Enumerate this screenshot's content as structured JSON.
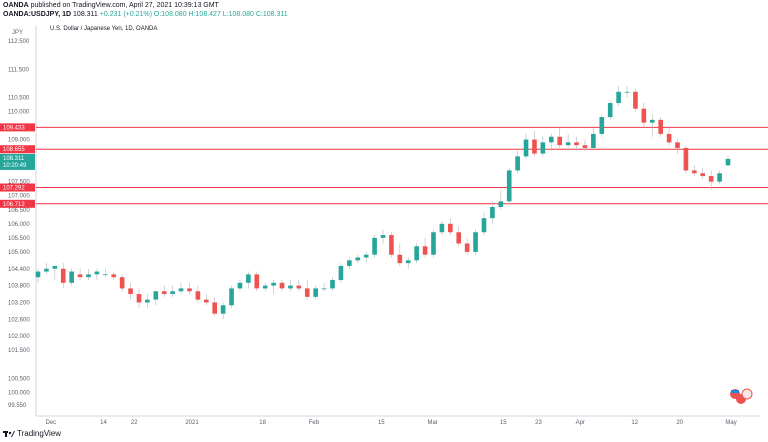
{
  "header": {
    "publisher_line": "OANDA published on TradingView.com, April 27, 2021 10:39:13 GMT",
    "publisher_name": "OANDA",
    "publisher_rest": " published on TradingView.com, April 27, 2021 10:39:13 GMT",
    "symbol": "OANDA:USDJPY, 1D",
    "last": "108.311",
    "change": "+0.231 (+0.21%)",
    "ohlc": "O:108.080 H:108.427 L:108.080 C:108.311"
  },
  "legend_title": "U.S. Dollar / Japanese Yen, 1D, OANDA",
  "price_axis": {
    "currency": "JPY",
    "ticks": [
      "112.500",
      "111.500",
      "110.500",
      "110.000",
      "109.000",
      "108.300",
      "107.500",
      "107.000",
      "106.500",
      "106.000",
      "105.500",
      "105.000",
      "104.400",
      "103.800",
      "103.200",
      "102.600",
      "102.000",
      "101.500",
      "100.500",
      "100.000",
      "99.550"
    ]
  },
  "time_axis": {
    "ticks": [
      "Dec",
      "14",
      "22",
      "2021",
      "18",
      "Feb",
      "15",
      "Mar",
      "15",
      "23",
      "Apr",
      "12",
      "20",
      "May"
    ]
  },
  "current_price_label": "108.311",
  "current_price_time": "10:20:49",
  "colors": {
    "up": "#26a69a",
    "down": "#ef5350",
    "hline": "#f23645",
    "label_bg": "#f23645"
  },
  "chart_data": {
    "type": "candlestick",
    "title": "U.S. Dollar / Japanese Yen, 1D, OANDA",
    "symbol": "USDJPY",
    "ylim": [
      99.3,
      112.9
    ],
    "horizontal_lines": [
      109.433,
      108.655,
      107.292,
      106.712
    ],
    "horizontal_line_labels": [
      "109.433",
      "108.655",
      "107.292",
      "106.712"
    ],
    "candles": [
      {
        "o": 104.1,
        "h": 104.4,
        "l": 103.9,
        "c": 104.3
      },
      {
        "o": 104.3,
        "h": 104.6,
        "l": 104.2,
        "c": 104.4
      },
      {
        "o": 104.4,
        "h": 104.5,
        "l": 104.0,
        "c": 104.5
      },
      {
        "o": 104.4,
        "h": 104.6,
        "l": 103.7,
        "c": 103.9
      },
      {
        "o": 103.9,
        "h": 104.4,
        "l": 103.8,
        "c": 104.3
      },
      {
        "o": 104.2,
        "h": 104.4,
        "l": 104.0,
        "c": 104.1
      },
      {
        "o": 104.1,
        "h": 104.4,
        "l": 104.0,
        "c": 104.2
      },
      {
        "o": 104.2,
        "h": 104.4,
        "l": 104.0,
        "c": 104.3
      },
      {
        "o": 104.2,
        "h": 104.4,
        "l": 104.1,
        "c": 104.2
      },
      {
        "o": 104.2,
        "h": 104.3,
        "l": 104.0,
        "c": 104.1
      },
      {
        "o": 104.1,
        "h": 104.2,
        "l": 103.6,
        "c": 103.7
      },
      {
        "o": 103.7,
        "h": 103.9,
        "l": 103.3,
        "c": 103.5
      },
      {
        "o": 103.5,
        "h": 103.7,
        "l": 103.0,
        "c": 103.2
      },
      {
        "o": 103.2,
        "h": 103.5,
        "l": 103.0,
        "c": 103.3
      },
      {
        "o": 103.3,
        "h": 103.6,
        "l": 103.1,
        "c": 103.6
      },
      {
        "o": 103.6,
        "h": 103.8,
        "l": 103.4,
        "c": 103.5
      },
      {
        "o": 103.5,
        "h": 103.8,
        "l": 103.4,
        "c": 103.6
      },
      {
        "o": 103.6,
        "h": 103.9,
        "l": 103.5,
        "c": 103.7
      },
      {
        "o": 103.7,
        "h": 103.9,
        "l": 103.5,
        "c": 103.6
      },
      {
        "o": 103.6,
        "h": 103.8,
        "l": 103.2,
        "c": 103.3
      },
      {
        "o": 103.3,
        "h": 103.5,
        "l": 103.1,
        "c": 103.2
      },
      {
        "o": 103.2,
        "h": 103.4,
        "l": 102.7,
        "c": 102.8
      },
      {
        "o": 102.8,
        "h": 103.2,
        "l": 102.6,
        "c": 103.1
      },
      {
        "o": 103.1,
        "h": 103.8,
        "l": 103.0,
        "c": 103.7
      },
      {
        "o": 103.7,
        "h": 104.0,
        "l": 103.6,
        "c": 103.9
      },
      {
        "o": 103.9,
        "h": 104.3,
        "l": 103.7,
        "c": 104.2
      },
      {
        "o": 104.2,
        "h": 104.3,
        "l": 103.6,
        "c": 103.7
      },
      {
        "o": 103.7,
        "h": 103.9,
        "l": 103.6,
        "c": 103.8
      },
      {
        "o": 103.8,
        "h": 104.0,
        "l": 103.5,
        "c": 103.9
      },
      {
        "o": 103.9,
        "h": 104.0,
        "l": 103.6,
        "c": 103.7
      },
      {
        "o": 103.7,
        "h": 104.0,
        "l": 103.6,
        "c": 103.8
      },
      {
        "o": 103.8,
        "h": 104.0,
        "l": 103.6,
        "c": 103.7
      },
      {
        "o": 103.7,
        "h": 104.0,
        "l": 103.3,
        "c": 103.4
      },
      {
        "o": 103.4,
        "h": 103.8,
        "l": 103.3,
        "c": 103.7
      },
      {
        "o": 103.7,
        "h": 103.9,
        "l": 103.6,
        "c": 103.7
      },
      {
        "o": 103.7,
        "h": 104.1,
        "l": 103.6,
        "c": 104.0
      },
      {
        "o": 104.0,
        "h": 104.6,
        "l": 103.9,
        "c": 104.5
      },
      {
        "o": 104.5,
        "h": 104.8,
        "l": 104.4,
        "c": 104.7
      },
      {
        "o": 104.7,
        "h": 104.9,
        "l": 104.6,
        "c": 104.8
      },
      {
        "o": 104.8,
        "h": 105.0,
        "l": 104.6,
        "c": 104.9
      },
      {
        "o": 104.9,
        "h": 105.6,
        "l": 104.8,
        "c": 105.5
      },
      {
        "o": 105.5,
        "h": 105.8,
        "l": 105.3,
        "c": 105.6
      },
      {
        "o": 105.6,
        "h": 105.7,
        "l": 104.8,
        "c": 104.9
      },
      {
        "o": 104.9,
        "h": 105.3,
        "l": 104.5,
        "c": 104.6
      },
      {
        "o": 104.6,
        "h": 104.8,
        "l": 104.4,
        "c": 104.7
      },
      {
        "o": 104.7,
        "h": 105.3,
        "l": 104.6,
        "c": 105.2
      },
      {
        "o": 105.2,
        "h": 105.5,
        "l": 104.8,
        "c": 104.9
      },
      {
        "o": 104.9,
        "h": 105.8,
        "l": 104.8,
        "c": 105.7
      },
      {
        "o": 105.7,
        "h": 106.1,
        "l": 105.6,
        "c": 106.0
      },
      {
        "o": 106.0,
        "h": 106.2,
        "l": 105.6,
        "c": 105.7
      },
      {
        "o": 105.7,
        "h": 105.9,
        "l": 105.2,
        "c": 105.3
      },
      {
        "o": 105.3,
        "h": 105.5,
        "l": 104.9,
        "c": 105.0
      },
      {
        "o": 105.0,
        "h": 105.8,
        "l": 104.9,
        "c": 105.7
      },
      {
        "o": 105.7,
        "h": 106.4,
        "l": 105.6,
        "c": 106.2
      },
      {
        "o": 106.2,
        "h": 106.8,
        "l": 106.0,
        "c": 106.6
      },
      {
        "o": 106.6,
        "h": 107.2,
        "l": 106.5,
        "c": 106.8
      },
      {
        "o": 106.8,
        "h": 108.0,
        "l": 106.7,
        "c": 107.9
      },
      {
        "o": 107.9,
        "h": 108.6,
        "l": 107.8,
        "c": 108.4
      },
      {
        "o": 108.4,
        "h": 109.2,
        "l": 108.3,
        "c": 109.0
      },
      {
        "o": 109.0,
        "h": 109.3,
        "l": 108.4,
        "c": 108.5
      },
      {
        "o": 108.5,
        "h": 109.1,
        "l": 108.4,
        "c": 108.9
      },
      {
        "o": 108.9,
        "h": 109.2,
        "l": 108.6,
        "c": 109.1
      },
      {
        "o": 109.1,
        "h": 109.4,
        "l": 108.7,
        "c": 108.8
      },
      {
        "o": 108.8,
        "h": 109.2,
        "l": 108.6,
        "c": 108.9
      },
      {
        "o": 108.9,
        "h": 109.1,
        "l": 108.6,
        "c": 108.8
      },
      {
        "o": 108.8,
        "h": 109.0,
        "l": 108.6,
        "c": 108.7
      },
      {
        "o": 108.7,
        "h": 109.4,
        "l": 108.6,
        "c": 109.2
      },
      {
        "o": 109.2,
        "h": 109.9,
        "l": 109.1,
        "c": 109.8
      },
      {
        "o": 109.8,
        "h": 110.4,
        "l": 109.7,
        "c": 110.3
      },
      {
        "o": 110.3,
        "h": 110.9,
        "l": 110.2,
        "c": 110.7
      },
      {
        "o": 110.7,
        "h": 110.9,
        "l": 110.5,
        "c": 110.7
      },
      {
        "o": 110.7,
        "h": 110.8,
        "l": 110.0,
        "c": 110.1
      },
      {
        "o": 110.1,
        "h": 110.3,
        "l": 109.4,
        "c": 109.6
      },
      {
        "o": 109.6,
        "h": 109.9,
        "l": 109.1,
        "c": 109.7
      },
      {
        "o": 109.7,
        "h": 109.8,
        "l": 109.1,
        "c": 109.2
      },
      {
        "o": 109.2,
        "h": 109.4,
        "l": 108.8,
        "c": 108.9
      },
      {
        "o": 108.9,
        "h": 109.0,
        "l": 108.5,
        "c": 108.7
      },
      {
        "o": 108.7,
        "h": 108.8,
        "l": 107.8,
        "c": 107.9
      },
      {
        "o": 107.9,
        "h": 108.1,
        "l": 107.7,
        "c": 107.8
      },
      {
        "o": 107.8,
        "h": 108.0,
        "l": 107.6,
        "c": 107.7
      },
      {
        "o": 107.7,
        "h": 107.9,
        "l": 107.2,
        "c": 107.5
      },
      {
        "o": 107.5,
        "h": 107.9,
        "l": 107.4,
        "c": 107.8
      },
      {
        "o": 108.08,
        "h": 108.427,
        "l": 108.08,
        "c": 108.311
      }
    ],
    "xticks": [
      "Dec",
      "14",
      "22",
      "2021",
      "18",
      "Feb",
      "15",
      "Mar",
      "15",
      "23",
      "Apr",
      "12",
      "20",
      "May"
    ]
  },
  "footer": {
    "brand": "TradingView"
  }
}
